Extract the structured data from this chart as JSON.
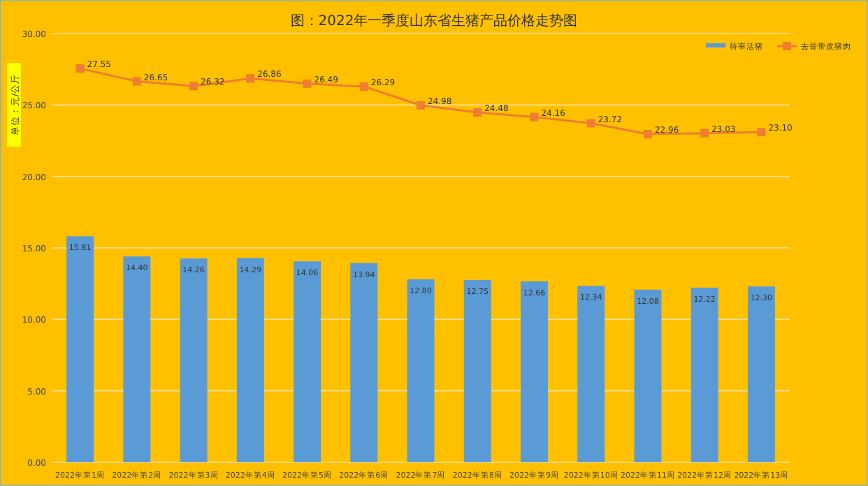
{
  "chart_data": {
    "type": "bar",
    "title": "图：2022年一季度山东省生猪产品价格走势图",
    "ylabel": "单位：元/公斤",
    "categories": [
      "2022年第1周",
      "2022年第2周",
      "2022年第3周",
      "2022年第4周",
      "2022年第5周",
      "2022年第6周",
      "2022年第7周",
      "2022年第8周",
      "2022年第9周",
      "2022年第10周",
      "2022年第11周",
      "2022年第12周",
      "2022年第13周"
    ],
    "series": [
      {
        "name": "待宰活猪",
        "color": "#5b9bd5",
        "values": [
          15.81,
          14.4,
          14.26,
          14.29,
          14.06,
          13.94,
          12.8,
          12.75,
          12.66,
          12.34,
          12.08,
          12.22,
          12.3
        ],
        "value_labels": [
          "15.81",
          "14.40",
          "14.26",
          "14.29",
          "14.06",
          "13.94",
          "12.80",
          "12.75",
          "12.66",
          "12.34",
          "12.08",
          "12.22",
          "12.30"
        ]
      },
      {
        "name": "去骨带皮猪肉",
        "type": "line",
        "color": "#ed7d31",
        "marker": "square",
        "values": [
          27.55,
          26.65,
          26.32,
          26.86,
          26.49,
          26.29,
          24.98,
          24.48,
          24.16,
          23.72,
          22.96,
          23.03,
          23.1
        ],
        "value_labels": [
          "27.55",
          "26.65",
          "26.32",
          "26.86",
          "26.49",
          "26.29",
          "24.98",
          "24.48",
          "24.16",
          "23.72",
          "22.96",
          "23.03",
          "23.10"
        ]
      }
    ],
    "ylim": [
      0,
      30
    ],
    "yticks": [
      {
        "value": 0,
        "label": "0.00"
      },
      {
        "value": 5,
        "label": "5.00"
      },
      {
        "value": 10,
        "label": "10.00"
      },
      {
        "value": 15,
        "label": "15.00"
      },
      {
        "value": 20,
        "label": "20.00"
      },
      {
        "value": 25,
        "label": "25.00"
      },
      {
        "value": 30,
        "label": "30.00"
      }
    ],
    "grid": "y",
    "legend": "top right"
  }
}
